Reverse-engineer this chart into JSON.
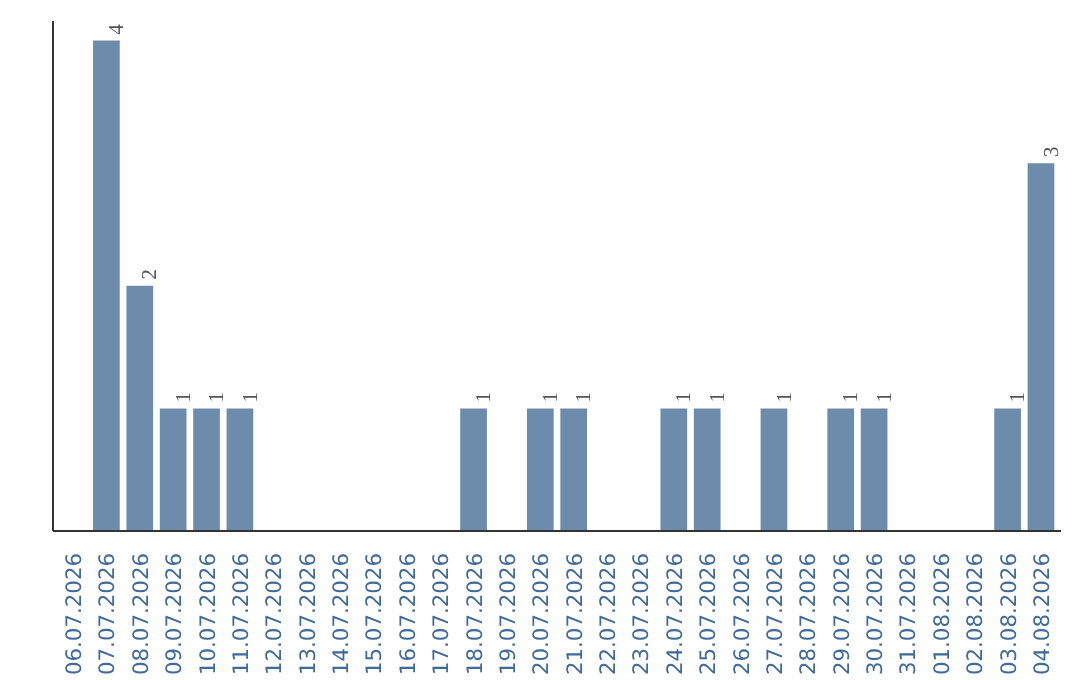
{
  "chart_data": {
    "type": "bar",
    "categories": [
      "06.07.2026",
      "07.07.2026",
      "08.07.2026",
      "09.07.2026",
      "10.07.2026",
      "11.07.2026",
      "12.07.2026",
      "13.07.2026",
      "14.07.2026",
      "15.07.2026",
      "16.07.2026",
      "17.07.2026",
      "18.07.2026",
      "19.07.2026",
      "20.07.2026",
      "21.07.2026",
      "22.07.2026",
      "23.07.2026",
      "24.07.2026",
      "25.07.2026",
      "26.07.2026",
      "27.07.2026",
      "28.07.2026",
      "29.07.2026",
      "30.07.2026",
      "31.07.2026",
      "01.08.2026",
      "02.08.2026",
      "03.08.2026",
      "04.08.2026"
    ],
    "values": [
      0,
      4,
      2,
      1,
      1,
      1,
      0,
      0,
      0,
      0,
      0,
      0,
      1,
      0,
      1,
      1,
      0,
      0,
      1,
      1,
      0,
      1,
      0,
      1,
      1,
      0,
      0,
      0,
      1,
      3
    ],
    "value_labels": [
      null,
      "4",
      "2",
      "1",
      "1",
      "1",
      null,
      null,
      null,
      null,
      null,
      null,
      "1",
      null,
      "1",
      "1",
      null,
      null,
      "1",
      "1",
      null,
      "1",
      null,
      "1",
      "1",
      null,
      null,
      null,
      "1",
      "3"
    ],
    "color": "#6d8cab",
    "tick_labels": "x"
  }
}
